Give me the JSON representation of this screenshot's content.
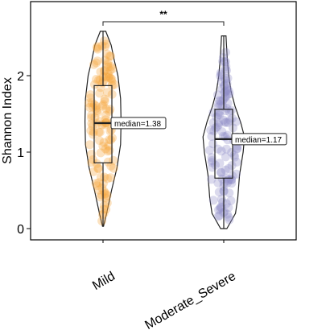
{
  "chart_data": {
    "type": "violin",
    "ylabel": "Shannon Index",
    "xlabel": "",
    "ylim": [
      -0.1,
      3.0
    ],
    "yticks": [
      0,
      1,
      2
    ],
    "categories": [
      "Mild",
      "Moderate_Severe"
    ],
    "groups": [
      {
        "name": "Mild",
        "color": "#F6A43C",
        "min": 0.03,
        "q1": 0.86,
        "median": 1.38,
        "q3": 1.87,
        "max": 2.58,
        "median_label": "median=1.38",
        "n_points": 130
      },
      {
        "name": "Moderate_Severe",
        "color": "#8E8BC6",
        "min": 0.0,
        "q1": 0.66,
        "median": 1.17,
        "q3": 1.56,
        "max": 2.52,
        "median_label": "median=1.17",
        "n_points": 130
      }
    ],
    "significance": {
      "label": "**",
      "between": [
        "Mild",
        "Moderate_Severe"
      ]
    },
    "grid": false,
    "legend": "none"
  }
}
